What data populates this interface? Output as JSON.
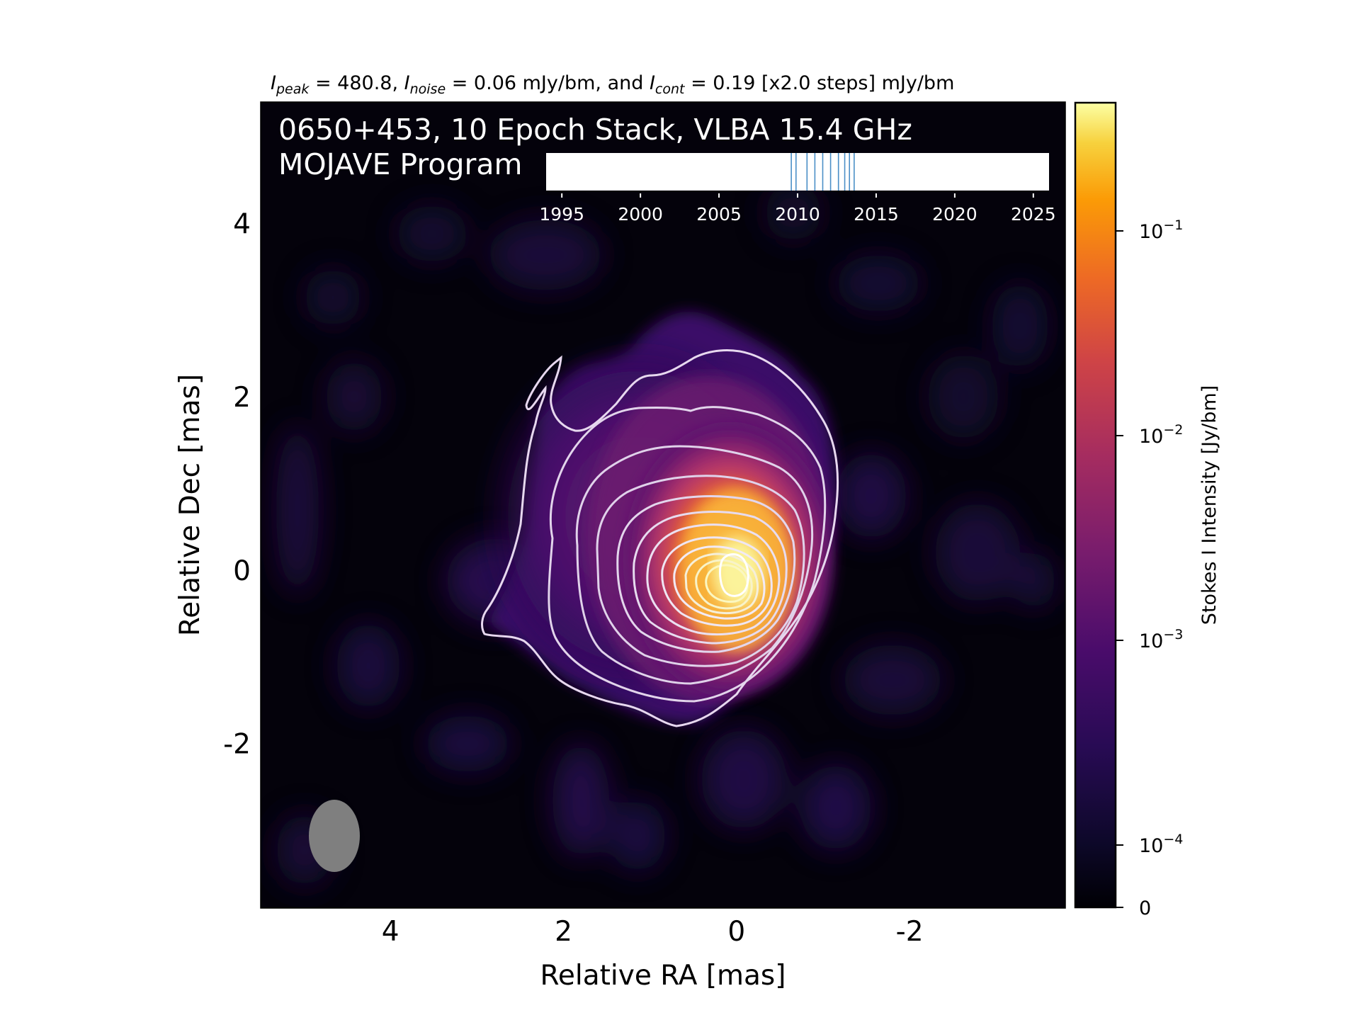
{
  "header": {
    "peak_sym": "I",
    "peak_sub": "peak",
    "peak_text": " = 480.8, ",
    "noise_sym": "I",
    "noise_sub": "noise",
    "noise_text": " = 0.06 mJy/bm, and ",
    "cont_sym": "I",
    "cont_sub": "cont",
    "cont_text": " = 0.19 [x2.0 steps] mJy/bm"
  },
  "overlay": {
    "line1": "0650+453, 10 Epoch Stack, VLBA 15.4 GHz",
    "line2": "MOJAVE Program"
  },
  "timeline": {
    "ticks": [
      "1995",
      "2000",
      "2005",
      "2010",
      "2015",
      "2020",
      "2025"
    ],
    "tick_years": [
      1995,
      2000,
      2005,
      2010,
      2015,
      2020,
      2025
    ],
    "range": [
      1994,
      2026
    ],
    "epochs": [
      2009.6,
      2009.9,
      2010.6,
      2011.1,
      2011.6,
      2012.1,
      2012.6,
      2013.0,
      2013.3,
      2013.6
    ],
    "epoch_color": "#4b8fc7"
  },
  "chart_data": {
    "type": "heatmap",
    "xlabel": "Relative RA [mas]",
    "ylabel": "Relative Dec [mas]",
    "xlim": [
      5.5,
      -3.8
    ],
    "ylim": [
      -3.9,
      5.4
    ],
    "xticks": [
      "4",
      "2",
      "0",
      "-2"
    ],
    "xtick_values": [
      4,
      2,
      0,
      -2
    ],
    "yticks": [
      "4",
      "2",
      "0",
      "-2"
    ],
    "ytick_values": [
      4,
      2,
      0,
      -2
    ],
    "colormap": "inferno",
    "color_scale": "log",
    "peak_position": [
      0,
      0
    ],
    "contour_levels_count": 13,
    "beam_center": [
      4.6,
      -3.05
    ],
    "beam_axes": [
      0.58,
      0.82
    ],
    "colorbar": {
      "label": "Stokes I Intensity [Jy/bm]",
      "tick_base": "10",
      "ticks": [
        {
          "exp": "−1",
          "value": 0.1
        },
        {
          "exp": "−2",
          "value": 0.01
        },
        {
          "exp": "−3",
          "value": 0.001
        },
        {
          "exp": "−4",
          "value": 0.0001
        }
      ],
      "zero_label": "0",
      "zero_value": 0
    }
  }
}
